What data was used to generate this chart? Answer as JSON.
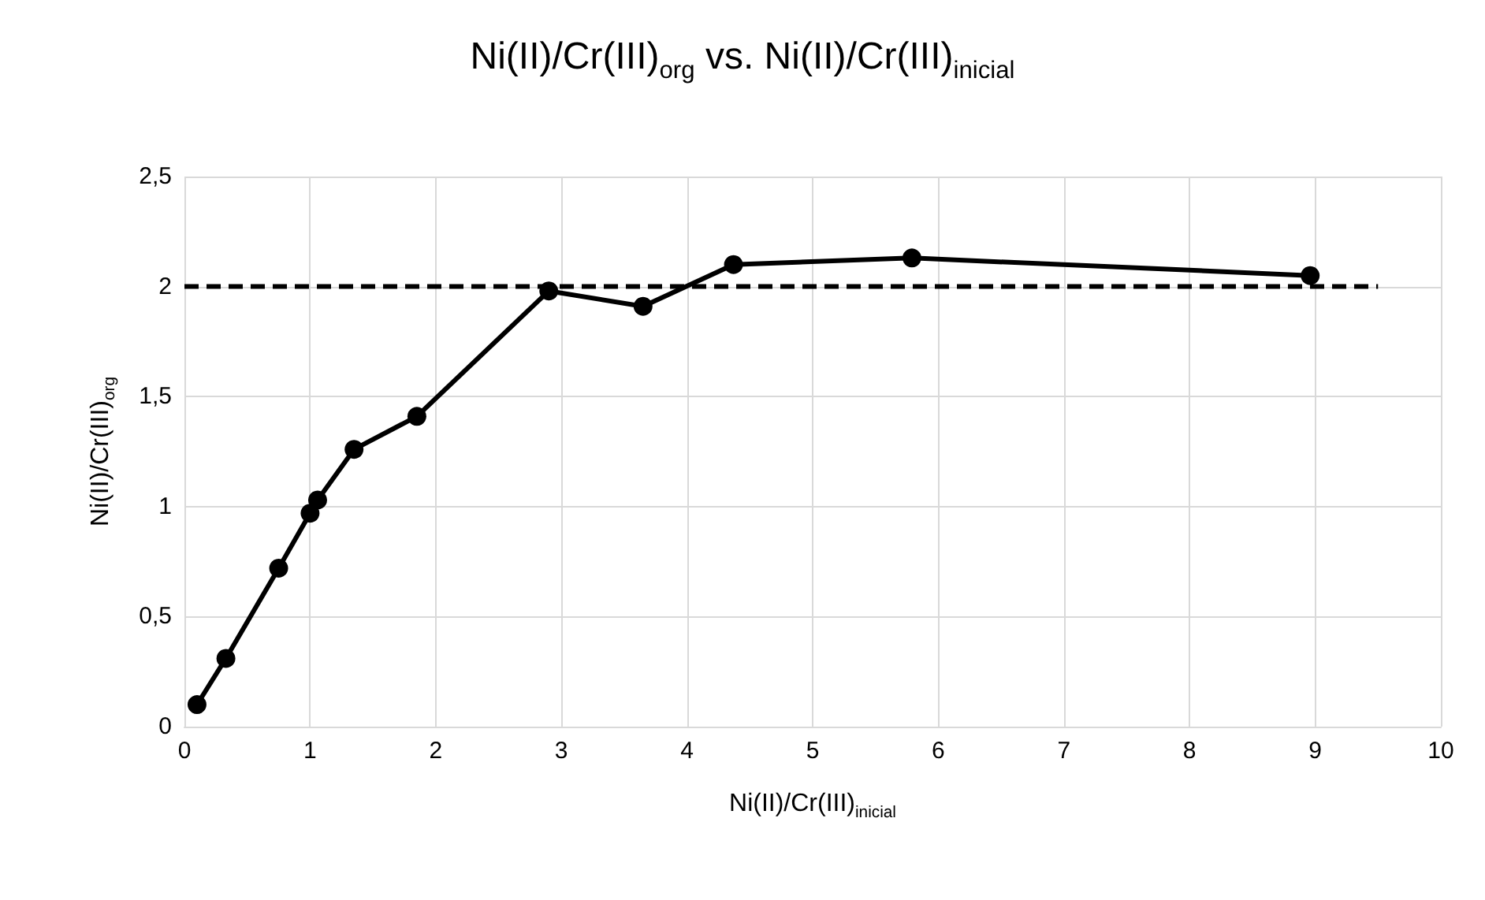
{
  "chart_data": {
    "type": "line",
    "title": "Ni(II)/Cr(III)$_{org}$ vs. Ni(II)/Cr(III)$_{inicial}$",
    "xlabel": "Ni(II)/Cr(III)$_{inicial}$",
    "ylabel": "Ni(II)/Cr(III)$_{org}$",
    "series": [
      {
        "color": "#000000",
        "marker": "circle",
        "line_style": "solid",
        "x": [
          0.1,
          0.33,
          0.75,
          1.0,
          1.06,
          1.35,
          1.85,
          2.9,
          3.65,
          4.37,
          5.79,
          8.96
        ],
        "values": [
          0.1,
          0.31,
          0.72,
          0.97,
          1.03,
          1.26,
          1.41,
          1.98,
          1.91,
          2.1,
          2.13,
          2.05
        ]
      },
      {
        "color": "#000000",
        "marker": "none",
        "line_style": "dashed",
        "x": [
          0,
          9.5
        ],
        "values": [
          2,
          2
        ]
      }
    ],
    "xlim": [
      0,
      10
    ],
    "xticks": [
      0,
      1,
      2,
      3,
      4,
      5,
      6,
      7,
      8,
      9,
      10
    ],
    "ylim": [
      0,
      2.5
    ],
    "yticks": [
      0,
      {
        "value": 0.5,
        "label": "0,5"
      },
      1,
      {
        "value": 1.5,
        "label": "1,5"
      },
      2,
      {
        "value": 2.5,
        "label": "2,5"
      }
    ],
    "grid": true
  }
}
